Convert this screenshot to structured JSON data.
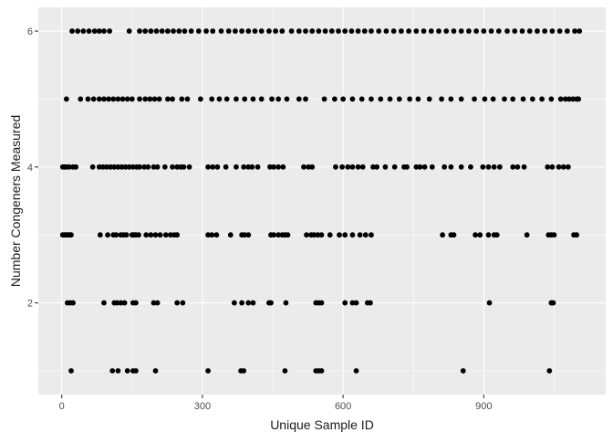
{
  "chart_data": {
    "type": "scatter",
    "title": "",
    "xlabel": "Unique Sample ID",
    "ylabel": "Number Congeners Measured",
    "xlim": [
      -50,
      1160
    ],
    "ylim": [
      0.65,
      6.35
    ],
    "x_ticks": [
      0,
      300,
      600,
      900
    ],
    "x_tick_labels": [
      "0",
      "300",
      "600",
      "900"
    ],
    "y_ticks": [
      2,
      4,
      6
    ],
    "y_tick_labels": [
      "2",
      "4",
      "6"
    ],
    "grid": true,
    "legend": "none",
    "colors": {
      "panel": "#ebebeb",
      "grid": "#ffffff",
      "point": "#000000",
      "tick_text": "#4d4d4d"
    },
    "series": [
      {
        "values": [
          {
            "y": 1,
            "x": [
              20,
              108,
              120,
              140,
              152,
              158,
              200,
              312,
              382,
              388,
              476,
              542,
              548,
              554,
              628,
              856,
              1040
            ]
          },
          {
            "y": 2,
            "x": [
              12,
              18,
              24,
              90,
              112,
              118,
              126,
              134,
              152,
              158,
              196,
              204,
              246,
              258,
              368,
              384,
              398,
              408,
              442,
              446,
              478,
              542,
              548,
              554,
              604,
              620,
              628,
              652,
              658,
              912,
              1044,
              1048
            ]
          },
          {
            "y": 3,
            "x": [
              2,
              6,
              10,
              14,
              18,
              20,
              82,
              98,
              110,
              116,
              126,
              132,
              138,
              150,
              154,
              158,
              164,
              180,
              190,
              200,
              210,
              222,
              232,
              240,
              246,
              312,
              320,
              330,
              360,
              384,
              390,
              398,
              446,
              452,
              462,
              470,
              476,
              482,
              522,
              532,
              538,
              546,
              554,
              572,
              592,
              604,
              620,
              636,
              648,
              660,
              812,
              830,
              836,
              882,
              892,
              910,
              922,
              928,
              992,
              1038,
              1044,
              1050,
              1092,
              1098
            ]
          },
          {
            "y": 4,
            "x": [
              2,
              6,
              10,
              16,
              24,
              30,
              66,
              80,
              88,
              96,
              104,
              112,
              120,
              128,
              136,
              144,
              152,
              160,
              166,
              176,
              184,
              196,
              204,
              220,
              236,
              246,
              254,
              260,
              272,
              312,
              322,
              332,
              350,
              372,
              388,
              398,
              406,
              418,
              444,
              452,
              462,
              472,
              516,
              526,
              534,
              584,
              598,
              610,
              620,
              632,
              642,
              664,
              672,
              690,
              710,
              730,
              736,
              756,
              764,
              774,
              790,
              816,
              830,
              852,
              872,
              898,
              910,
              922,
              934,
              962,
              972,
              986,
              1036,
              1046,
              1060,
              1070,
              1080
            ]
          },
          {
            "y": 5,
            "x": [
              10,
              40,
              56,
              68,
              80,
              90,
              100,
              110,
              120,
              130,
              140,
              150,
              166,
              178,
              188,
              198,
              208,
              226,
              236,
              256,
              268,
              296,
              320,
              336,
              352,
              372,
              390,
              408,
              426,
              448,
              462,
              480,
              506,
              520,
              560,
              582,
              600,
              620,
              640,
              660,
              680,
              700,
              720,
              742,
              760,
              784,
              810,
              830,
              852,
              880,
              902,
              920,
              944,
              962,
              984,
              1004,
              1024,
              1044,
              1064,
              1074,
              1082,
              1090,
              1098,
              1102
            ]
          },
          {
            "y": 6,
            "x": [
              22,
              34,
              46,
              58,
              70,
              80,
              90,
              102,
              144,
              166,
              178,
              190,
              202,
              214,
              226,
              238,
              250,
              262,
              276,
              292,
              308,
              322,
              340,
              356,
              370,
              384,
              398,
              412,
              426,
              442,
              456,
              470,
              490,
              506,
              520,
              534,
              548,
              562,
              576,
              590,
              604,
              618,
              632,
              646,
              660,
              676,
              692,
              708,
              724,
              740,
              756,
              772,
              788,
              804,
              820,
              836,
              852,
              868,
              884,
              900,
              916,
              932,
              950,
              966,
              982,
              998,
              1014,
              1030,
              1046,
              1062,
              1078,
              1094,
              1104
            ]
          }
        ]
      }
    ]
  }
}
